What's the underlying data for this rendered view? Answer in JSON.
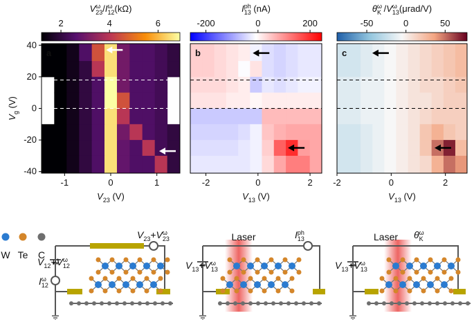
{
  "chart_data": [
    {
      "type": "heatmap",
      "panel_label": "a",
      "colormap": "inferno",
      "clim": [
        1.2,
        6.9
      ],
      "cbticks": [
        2,
        4,
        6
      ],
      "title": [
        {
          "text": "V",
          "style": "italic"
        },
        {
          "text": "ω",
          "pos": "sup"
        },
        {
          "text": "23",
          "pos": "sub"
        },
        {
          "text": "/"
        },
        {
          "text": "I",
          "style": "italic"
        },
        {
          "text": "ω",
          "pos": "sup"
        },
        {
          "text": "12",
          "pos": "sub"
        },
        {
          "text": "(kΩ)"
        }
      ],
      "xlabel": [
        {
          "text": "V",
          "style": "italic"
        },
        {
          "text": "23",
          "pos": "sub"
        },
        {
          "text": " (V)"
        }
      ],
      "ylabel": [
        {
          "text": "V",
          "style": "italic"
        },
        {
          "text": "g",
          "pos": "sub"
        },
        {
          "text": " (V)"
        }
      ],
      "xlim": [
        -1.5,
        1.5
      ],
      "ylim": [
        -41,
        41
      ],
      "xticks": [
        -1,
        0,
        1
      ],
      "yticks": [
        40,
        20,
        0,
        -20,
        -40
      ],
      "x": [
        -1.36,
        -1.09,
        -0.82,
        -0.55,
        -0.27,
        0,
        0.27,
        0.55,
        0.82,
        1.09,
        1.36
      ],
      "y": [
        35,
        25,
        15,
        5,
        -5,
        -15,
        -25,
        -35
      ],
      "z": [
        [
          1,
          1.2,
          1.5,
          2.5,
          4.5,
          6.5,
          3,
          2.5,
          2.5,
          2.3,
          2
        ],
        [
          1,
          1.2,
          1.5,
          2,
          4,
          6.5,
          3,
          2.5,
          2.5,
          2.3,
          2
        ],
        [
          null,
          1.2,
          1.5,
          2,
          2.5,
          7,
          3,
          2.5,
          2.5,
          2.3,
          null
        ],
        [
          null,
          1.2,
          1.5,
          2,
          2.5,
          7,
          4.5,
          2.5,
          2.5,
          2.3,
          null
        ],
        [
          null,
          1.2,
          1.5,
          2,
          2.5,
          6.5,
          4,
          2.5,
          2.5,
          2.3,
          null
        ],
        [
          1,
          1.2,
          1.5,
          2,
          2.5,
          6.5,
          3,
          4,
          2.5,
          2.3,
          2
        ],
        [
          1,
          1.2,
          1.5,
          2,
          2.5,
          6.5,
          2.8,
          2.5,
          4,
          2.3,
          2
        ],
        [
          1,
          1.2,
          1.5,
          2,
          2.5,
          6.5,
          2.8,
          2.5,
          2.5,
          4,
          2
        ]
      ],
      "hlines": [
        18,
        0
      ],
      "annotation_color": "#ffffff",
      "arrows": [
        {
          "x": -0.1,
          "y": 37
        },
        {
          "x": 1.05,
          "y": -27
        }
      ]
    },
    {
      "type": "heatmap",
      "panel_label": "b",
      "colormap": "bwr",
      "clim": [
        -260,
        245
      ],
      "cbticks": [
        -200,
        0,
        200
      ],
      "title": [
        {
          "text": "I",
          "style": "italic"
        },
        {
          "text": "ph",
          "pos": "sup"
        },
        {
          "text": "13",
          "pos": "sub"
        },
        {
          "text": " (nA)"
        }
      ],
      "xlabel": [
        {
          "text": "V",
          "style": "italic"
        },
        {
          "text": "13",
          "pos": "sub"
        },
        {
          "text": " (V)"
        }
      ],
      "xlim": [
        -2.6,
        2.45
      ],
      "ylim": [
        -41,
        41
      ],
      "xticks": [
        -2,
        0,
        2
      ],
      "x": [
        -2.37,
        -1.91,
        -1.45,
        -0.99,
        -0.53,
        -0.08,
        0.38,
        0.84,
        1.3,
        1.76,
        2.22
      ],
      "y": [
        35,
        25,
        15,
        5,
        -5,
        -15,
        -25,
        -35
      ],
      "z": [
        [
          40,
          40,
          30,
          20,
          10,
          -20,
          -40,
          -50,
          -40,
          -30,
          -30
        ],
        [
          40,
          40,
          30,
          20,
          -10,
          20,
          -40,
          -50,
          -40,
          -30,
          -30
        ],
        [
          30,
          30,
          30,
          20,
          10,
          -60,
          -30,
          -40,
          -30,
          -20,
          -20
        ],
        [
          20,
          20,
          20,
          10,
          10,
          0,
          10,
          10,
          10,
          10,
          10
        ],
        [
          -60,
          -60,
          -60,
          -60,
          -60,
          -60,
          60,
          60,
          60,
          60,
          60
        ],
        [
          -50,
          -50,
          -50,
          -50,
          -40,
          -20,
          50,
          70,
          80,
          80,
          80
        ],
        [
          -40,
          -40,
          -40,
          -40,
          -30,
          -20,
          40,
          150,
          200,
          90,
          80
        ],
        [
          -30,
          -30,
          -30,
          -30,
          -30,
          -20,
          30,
          80,
          120,
          120,
          80
        ]
      ],
      "hlines": [
        18,
        0
      ],
      "annotation_color": "#000000",
      "arrows": [
        {
          "x": -0.2,
          "y": 35
        },
        {
          "x": 1.15,
          "y": -25
        }
      ]
    },
    {
      "type": "heatmap",
      "panel_label": "c",
      "colormap": "RdBu_r",
      "clim": [
        -88,
        78
      ],
      "cbticks": [
        -50,
        0,
        50
      ],
      "title": [
        {
          "text": "θ",
          "style": "italic"
        },
        {
          "text": "ω",
          "pos": "sup"
        },
        {
          "text": "K",
          "pos": "sub"
        },
        {
          "text": " /"
        },
        {
          "text": "V",
          "style": "italic"
        },
        {
          "text": "ω",
          "pos": "sup"
        },
        {
          "text": "13",
          "pos": "sub"
        },
        {
          "text": "(μrad/V)"
        }
      ],
      "xlabel": [
        {
          "text": "V",
          "style": "italic"
        },
        {
          "text": "13",
          "pos": "sub"
        },
        {
          "text": " (V)"
        }
      ],
      "xlim": [
        -2,
        2.8
      ],
      "ylim": [
        -41,
        41
      ],
      "xticks": [
        -2,
        0,
        2
      ],
      "x": [
        -1.78,
        -1.35,
        -0.91,
        -0.47,
        -0.04,
        0.4,
        0.84,
        1.27,
        1.71,
        2.15,
        2.58
      ],
      "y": [
        35,
        25,
        15,
        5,
        -5,
        -15,
        -25,
        -35
      ],
      "z": [
        [
          -20,
          -20,
          -15,
          -10,
          -5,
          0,
          5,
          10,
          15,
          20,
          25
        ],
        [
          -20,
          -20,
          -15,
          -10,
          -5,
          0,
          5,
          10,
          15,
          20,
          25
        ],
        [
          -15,
          -15,
          -10,
          -10,
          -5,
          0,
          5,
          10,
          10,
          15,
          20
        ],
        [
          -15,
          -15,
          -10,
          -10,
          -5,
          0,
          5,
          5,
          10,
          15,
          15
        ],
        [
          -15,
          -15,
          -10,
          -10,
          -5,
          0,
          5,
          10,
          15,
          15,
          15
        ],
        [
          -20,
          -20,
          -15,
          -10,
          -5,
          0,
          5,
          20,
          30,
          20,
          15
        ],
        [
          -20,
          -20,
          -15,
          -10,
          -5,
          0,
          5,
          20,
          50,
          70,
          25
        ],
        [
          -20,
          -20,
          -15,
          -10,
          -5,
          0,
          5,
          10,
          30,
          50,
          40
        ]
      ],
      "hlines": [
        18,
        0
      ],
      "annotation_color": "#000000",
      "arrows": [
        {
          "x": -0.7,
          "y": 35
        },
        {
          "x": 1.6,
          "y": -25
        }
      ]
    }
  ],
  "diagram": {
    "legend": [
      {
        "text": "W",
        "color": "#2b7bd0"
      },
      {
        "text": "Te",
        "color": "#d4862a"
      },
      {
        "text": "C",
        "color": "#6e6e6e"
      }
    ],
    "panels": [
      {
        "top": [
          {
            "text": "V",
            "style": "italic"
          },
          {
            "text": "23",
            "pos": "sub"
          },
          {
            "text": "+"
          },
          {
            "text": "V",
            "style": "italic"
          },
          {
            "text": "ω",
            "pos": "sup"
          },
          {
            "text": "23",
            "pos": "sub"
          }
        ],
        "source": [
          {
            "text": "V",
            "style": "italic"
          },
          {
            "text": "12",
            "pos": "sub"
          },
          {
            "text": "+"
          },
          {
            "text": "V",
            "style": "italic"
          },
          {
            "text": "ω",
            "pos": "sup"
          },
          {
            "text": "12",
            "pos": "sub"
          }
        ],
        "meter": [
          {
            "text": "I",
            "style": "italic"
          },
          {
            "text": "ω",
            "pos": "sup"
          },
          {
            "text": "12",
            "pos": "sub"
          }
        ]
      },
      {
        "laser": "Laser",
        "source": [
          {
            "text": "V",
            "style": "italic"
          },
          {
            "text": "13",
            "pos": "sub"
          },
          {
            "text": "+"
          },
          {
            "text": "V",
            "style": "italic"
          },
          {
            "text": "ω",
            "pos": "sup"
          },
          {
            "text": "13",
            "pos": "sub"
          }
        ],
        "meter": [
          {
            "text": "I",
            "style": "italic"
          },
          {
            "text": "ph",
            "pos": "sup"
          },
          {
            "text": "13",
            "pos": "sub"
          }
        ]
      },
      {
        "laser": "Laser",
        "source": [
          {
            "text": "V",
            "style": "italic"
          },
          {
            "text": "13",
            "pos": "sub"
          },
          {
            "text": "+"
          },
          {
            "text": "V",
            "style": "italic"
          },
          {
            "text": "ω",
            "pos": "sup"
          },
          {
            "text": "13",
            "pos": "sub"
          }
        ],
        "meter": [
          {
            "text": "θ",
            "style": "italic"
          },
          {
            "text": "ω",
            "pos": "sup"
          },
          {
            "text": "K",
            "pos": "sub"
          }
        ]
      }
    ]
  }
}
